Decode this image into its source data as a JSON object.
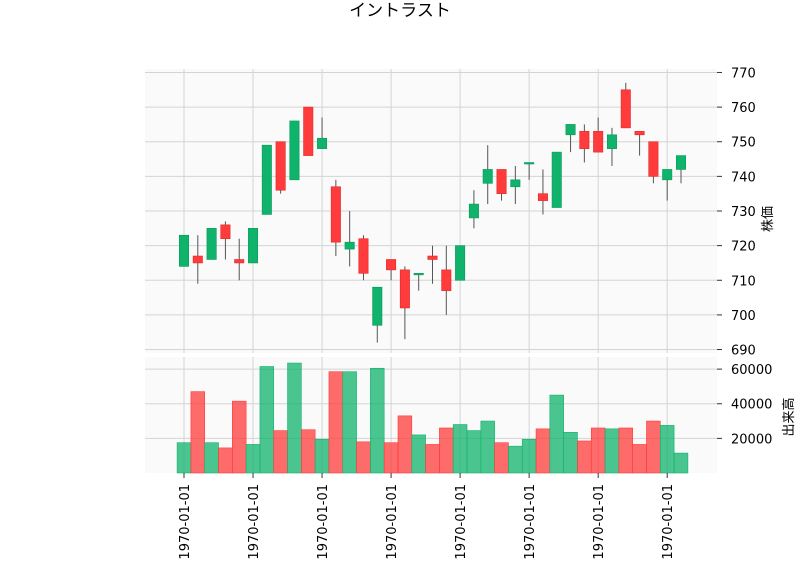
{
  "chart_data": {
    "type": "candlestick",
    "title": "イントラスト",
    "up_color": "#0fb36b",
    "down_color": "#ff3b3b",
    "price_axis": {
      "label": "株価",
      "ylim": [
        689,
        771
      ],
      "ticks": [
        690,
        700,
        710,
        720,
        730,
        740,
        750,
        760,
        770
      ]
    },
    "volume_axis": {
      "label": "出来高",
      "ylim": [
        0,
        67000
      ],
      "ticks": [
        20000,
        40000,
        60000
      ]
    },
    "x_tick_labels": [
      "1970-01-01",
      "1970-01-01",
      "1970-01-01",
      "1970-01-01",
      "1970-01-01",
      "1970-01-01",
      "1970-01-01",
      "1970-01-01"
    ],
    "x_tick_at_index": [
      0,
      5,
      10,
      15,
      20,
      25,
      30,
      35
    ],
    "candles": [
      {
        "open": 714,
        "high": 723,
        "low": 714,
        "close": 723,
        "volume": 17500
      },
      {
        "open": 717,
        "high": 723,
        "low": 709,
        "close": 715,
        "volume": 47000
      },
      {
        "open": 716,
        "high": 725,
        "low": 716,
        "close": 725,
        "volume": 17500
      },
      {
        "open": 726,
        "high": 727,
        "low": 716,
        "close": 722,
        "volume": 14500
      },
      {
        "open": 716,
        "high": 722,
        "low": 710,
        "close": 715,
        "volume": 41500
      },
      {
        "open": 715,
        "high": 725,
        "low": 715,
        "close": 725,
        "volume": 16500
      },
      {
        "open": 729,
        "high": 749,
        "low": 729,
        "close": 749,
        "volume": 61500
      },
      {
        "open": 750,
        "high": 750,
        "low": 735,
        "close": 736,
        "volume": 24500
      },
      {
        "open": 739,
        "high": 756,
        "low": 739,
        "close": 756,
        "volume": 63500
      },
      {
        "open": 760,
        "high": 760,
        "low": 746,
        "close": 746,
        "volume": 25000
      },
      {
        "open": 748,
        "high": 757,
        "low": 748,
        "close": 751,
        "volume": 19500
      },
      {
        "open": 737,
        "high": 739,
        "low": 717,
        "close": 721,
        "volume": 58500
      },
      {
        "open": 719,
        "high": 730,
        "low": 714,
        "close": 721,
        "volume": 58500
      },
      {
        "open": 722,
        "high": 723,
        "low": 710,
        "close": 712,
        "volume": 18000
      },
      {
        "open": 697,
        "high": 708,
        "low": 692,
        "close": 708,
        "volume": 60500
      },
      {
        "open": 716,
        "high": 716,
        "low": 710,
        "close": 713,
        "volume": 17500
      },
      {
        "open": 713,
        "high": 714,
        "low": 693,
        "close": 702,
        "volume": 33000
      },
      {
        "open": 712,
        "high": 712,
        "low": 707,
        "close": 712,
        "volume": 22000
      },
      {
        "open": 717,
        "high": 720,
        "low": 709,
        "close": 716,
        "volume": 16500
      },
      {
        "open": 713,
        "high": 720,
        "low": 700,
        "close": 707,
        "volume": 26000
      },
      {
        "open": 710,
        "high": 720,
        "low": 710,
        "close": 720,
        "volume": 28000
      },
      {
        "open": 728,
        "high": 736,
        "low": 725,
        "close": 732,
        "volume": 24500
      },
      {
        "open": 738,
        "high": 749,
        "low": 732,
        "close": 742,
        "volume": 30000
      },
      {
        "open": 742,
        "high": 742,
        "low": 733,
        "close": 735,
        "volume": 17500
      },
      {
        "open": 737,
        "high": 743,
        "low": 732,
        "close": 739,
        "volume": 15500
      },
      {
        "open": 744,
        "high": 744,
        "low": 739,
        "close": 744,
        "volume": 19500
      },
      {
        "open": 735,
        "high": 742,
        "low": 729,
        "close": 733,
        "volume": 25500
      },
      {
        "open": 731,
        "high": 747,
        "low": 731,
        "close": 747,
        "volume": 45000
      },
      {
        "open": 752,
        "high": 755,
        "low": 747,
        "close": 755,
        "volume": 23500
      },
      {
        "open": 753,
        "high": 755,
        "low": 744,
        "close": 748,
        "volume": 18500
      },
      {
        "open": 753,
        "high": 757,
        "low": 747,
        "close": 747,
        "volume": 26000
      },
      {
        "open": 748,
        "high": 754,
        "low": 743,
        "close": 752,
        "volume": 25500
      },
      {
        "open": 765,
        "high": 767,
        "low": 754,
        "close": 754,
        "volume": 26000
      },
      {
        "open": 753,
        "high": 753,
        "low": 746,
        "close": 752,
        "volume": 16500
      },
      {
        "open": 750,
        "high": 750,
        "low": 738,
        "close": 740,
        "volume": 30000
      },
      {
        "open": 739,
        "high": 742,
        "low": 733,
        "close": 742,
        "volume": 27500
      },
      {
        "open": 742,
        "high": 746,
        "low": 738,
        "close": 746,
        "volume": 11500
      }
    ]
  }
}
